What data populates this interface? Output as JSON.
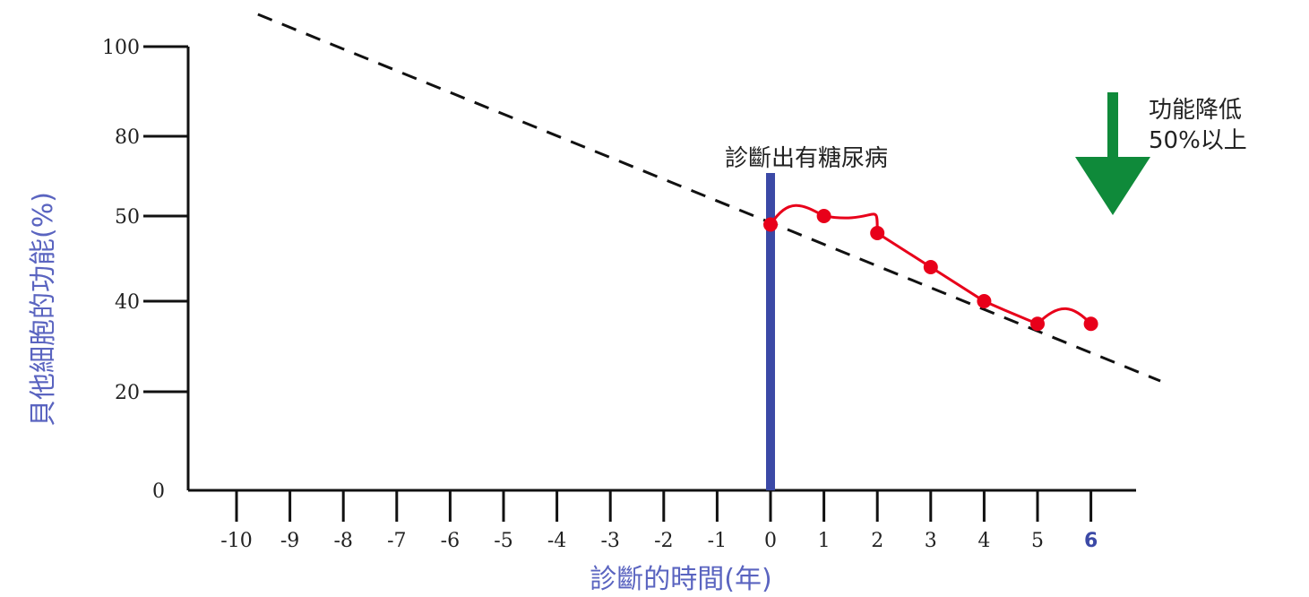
{
  "chart_data": {
    "type": "line",
    "xlabel": "診斷的時間(年)",
    "ylabel": "貝他細胞的功能(%)",
    "x_ticks": [
      -10,
      -9,
      -8,
      -7,
      -6,
      -5,
      -4,
      -3,
      -2,
      -1,
      0,
      1,
      2,
      3,
      4,
      5,
      6
    ],
    "x_tick_labels": [
      "-10",
      "-9",
      "-8",
      "-7",
      "-6",
      "-5",
      "-4",
      "-3",
      "-2",
      "-1",
      "0",
      "1",
      "2",
      "3",
      "4",
      "5",
      "6"
    ],
    "y_ticks": [
      0,
      20,
      40,
      50,
      80,
      100
    ],
    "y_tick_labels": [
      "0",
      "20",
      "40",
      "50",
      "80",
      "100"
    ],
    "xlim": [
      -10.8,
      6.8
    ],
    "series": [
      {
        "style": "dashed",
        "color": "#111111",
        "x": [
          -9.6,
          7.3
        ],
        "y": [
          107,
          24
        ]
      },
      {
        "style": "solid-markers",
        "color": "#e8001a",
        "x": [
          0,
          1,
          2,
          3,
          4,
          5,
          6
        ],
        "y": [
          49,
          50,
          48,
          44,
          40,
          35,
          35
        ]
      }
    ],
    "annotations": {
      "diagnosis_text": "診斷出有糖尿病",
      "diagnosis_x": 0,
      "diagnosis_color": "#3b49a6",
      "decline_text_1": "功能降低",
      "decline_text_2": "50%以上",
      "arrow_color": "#0f8a3a"
    },
    "accent_colors": {
      "axis_label": "#5a64c0",
      "highlight_tick": "#3b49a6"
    }
  }
}
